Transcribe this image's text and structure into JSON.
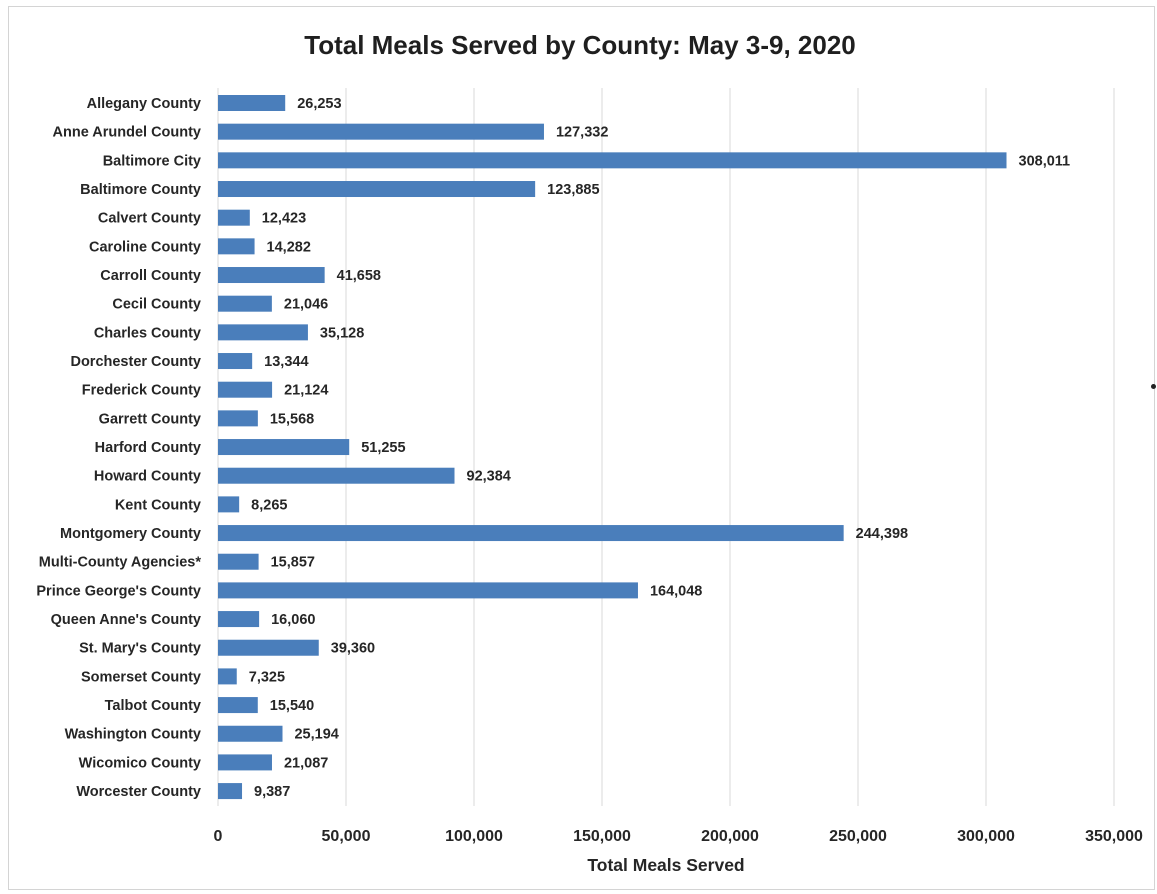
{
  "chart_data": {
    "type": "bar",
    "orientation": "horizontal",
    "title": "Total Meals Served by County: May 3-9, 2020",
    "xlabel": "Total Meals Served",
    "ylabel": "",
    "xlim": [
      0,
      350000
    ],
    "x_ticks": [
      0,
      50000,
      100000,
      150000,
      200000,
      250000,
      300000,
      350000
    ],
    "x_tick_labels": [
      "0",
      "50,000",
      "100,000",
      "150,000",
      "200,000",
      "250,000",
      "300,000",
      "350,000"
    ],
    "grid": "vertical",
    "legend": "none",
    "bar_color": "#4a7ebb",
    "categories": [
      "Allegany County",
      "Anne Arundel County",
      "Baltimore City",
      "Baltimore County",
      "Calvert County",
      "Caroline County",
      "Carroll County",
      "Cecil County",
      "Charles County",
      "Dorchester County",
      "Frederick County",
      "Garrett County",
      "Harford County",
      "Howard County",
      "Kent County",
      "Montgomery County",
      "Multi-County Agencies*",
      "Prince George's County",
      "Queen Anne's County",
      "St. Mary's County",
      "Somerset County",
      "Talbot County",
      "Washington County",
      "Wicomico County",
      "Worcester County"
    ],
    "values": [
      26253,
      127332,
      308011,
      123885,
      12423,
      14282,
      41658,
      21046,
      35128,
      13344,
      21124,
      15568,
      51255,
      92384,
      8265,
      244398,
      15857,
      164048,
      16060,
      39360,
      7325,
      15540,
      25194,
      21087,
      9387
    ],
    "value_labels": [
      "26,253",
      "127,332",
      "308,011",
      "123,885",
      "12,423",
      "14,282",
      "41,658",
      "21,046",
      "35,128",
      "13,344",
      "21,124",
      "15,568",
      "51,255",
      "92,384",
      "8,265",
      "244,398",
      "15,857",
      "164,048",
      "16,060",
      "39,360",
      "7,325",
      "15,540",
      "25,194",
      "21,087",
      "9,387"
    ]
  }
}
